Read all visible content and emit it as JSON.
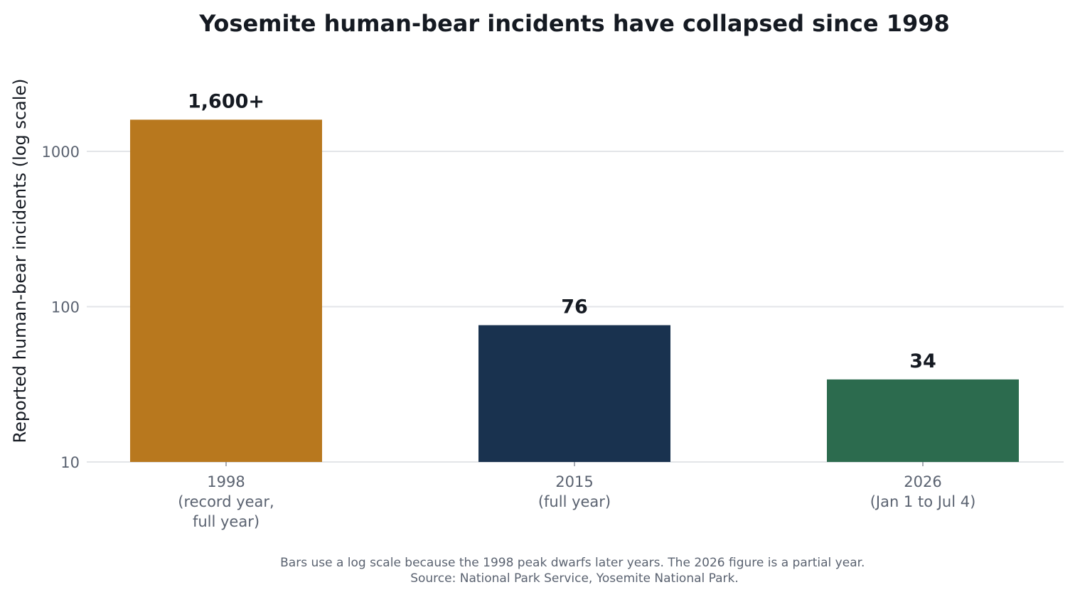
{
  "chart_data": {
    "type": "bar",
    "title": "Yosemite human-bear incidents have collapsed since 1998",
    "ylabel": "Reported human-bear incidents (log scale)",
    "xlabel": "",
    "yscale": "log",
    "ylim": [
      10,
      4000
    ],
    "yticks": [
      {
        "value": 10,
        "label": "10"
      },
      {
        "value": 100,
        "label": "100"
      },
      {
        "value": 1000,
        "label": "1000"
      }
    ],
    "grid": true,
    "categories": [
      {
        "lines": [
          "1998",
          "(record year,",
          "full year)"
        ]
      },
      {
        "lines": [
          "2015",
          "(full year)"
        ]
      },
      {
        "lines": [
          "2026",
          "(Jan 1 to Jul 4)"
        ]
      }
    ],
    "values": [
      1600,
      76,
      34
    ],
    "data_labels": [
      "1,600+",
      "76",
      "34"
    ],
    "colors": [
      "#b8781e",
      "#19324f",
      "#2c6b4e"
    ],
    "footnote": [
      "Bars use a log scale because the 1998 peak dwarfs later years. The 2026 figure is a partial year.",
      "Source: National Park Service, Yosemite National Park."
    ]
  }
}
